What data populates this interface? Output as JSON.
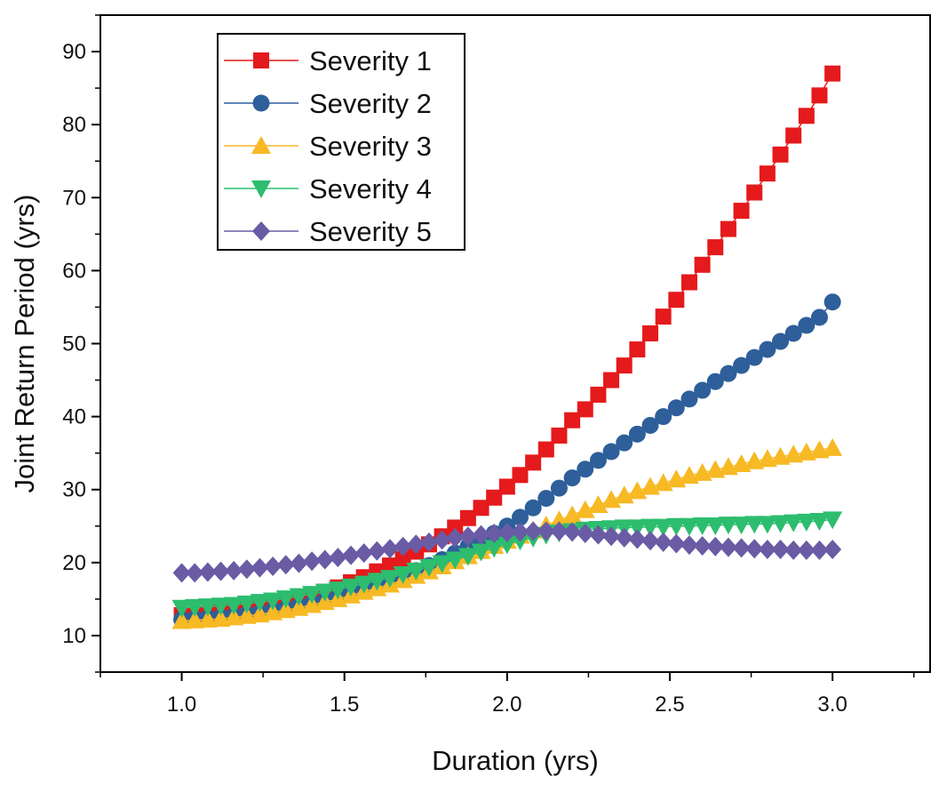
{
  "chart_data": {
    "type": "line",
    "title": "",
    "xlabel": "Duration (yrs)",
    "ylabel": "Joint Return Period (yrs)",
    "xlim": [
      0.75,
      3.3
    ],
    "ylim": [
      5,
      95
    ],
    "x_ticks": [
      "1.0",
      "1.5",
      "2.0",
      "2.5",
      "3.0"
    ],
    "y_ticks": [
      "10",
      "20",
      "30",
      "40",
      "50",
      "60",
      "70",
      "80",
      "90"
    ],
    "legend_position": "top-left",
    "x": [
      1.0,
      1.04,
      1.08,
      1.12,
      1.16,
      1.2,
      1.24,
      1.28,
      1.32,
      1.36,
      1.4,
      1.44,
      1.48,
      1.52,
      1.56,
      1.6,
      1.64,
      1.68,
      1.72,
      1.76,
      1.8,
      1.84,
      1.88,
      1.92,
      1.96,
      2.0,
      2.04,
      2.08,
      2.12,
      2.16,
      2.2,
      2.24,
      2.28,
      2.32,
      2.36,
      2.4,
      2.44,
      2.48,
      2.52,
      2.56,
      2.6,
      2.64,
      2.68,
      2.72,
      2.76,
      2.8,
      2.84,
      2.88,
      2.92,
      2.96,
      3.0
    ],
    "series": [
      {
        "name": "Severity 1",
        "color": "#e41a1c",
        "marker": "square",
        "values": [
          12.8,
          12.9,
          13.0,
          13.2,
          13.4,
          13.6,
          13.9,
          14.2,
          14.6,
          15.0,
          15.5,
          16.0,
          16.6,
          17.3,
          18.0,
          18.8,
          19.6,
          20.5,
          21.5,
          22.5,
          23.6,
          24.8,
          26.1,
          27.5,
          28.9,
          30.4,
          32.0,
          33.7,
          35.5,
          37.4,
          39.5,
          41.0,
          43.0,
          45.0,
          47.0,
          49.2,
          51.4,
          53.7,
          56.0,
          58.4,
          60.8,
          63.2,
          65.7,
          68.2,
          70.7,
          73.3,
          75.9,
          78.5,
          81.2,
          84.0,
          87.0
        ]
      },
      {
        "name": "Severity 2",
        "color": "#2e5f9a",
        "marker": "circle",
        "values": [
          12.2,
          12.3,
          12.4,
          12.5,
          12.7,
          12.9,
          13.1,
          13.4,
          13.7,
          14.0,
          14.4,
          14.8,
          15.3,
          15.8,
          16.3,
          16.9,
          17.5,
          18.2,
          18.9,
          19.6,
          20.4,
          21.3,
          22.2,
          23.1,
          24.0,
          25.0,
          26.2,
          27.5,
          28.8,
          30.2,
          31.6,
          32.8,
          34.0,
          35.2,
          36.4,
          37.6,
          38.8,
          40.0,
          41.2,
          42.4,
          43.6,
          44.8,
          45.9,
          47.0,
          48.1,
          49.2,
          50.3,
          51.4,
          52.5,
          53.6,
          55.7
        ]
      },
      {
        "name": "Severity 3",
        "color": "#f7b924",
        "marker": "triangle-up",
        "values": [
          12.0,
          12.1,
          12.2,
          12.3,
          12.5,
          12.7,
          12.9,
          13.2,
          13.5,
          13.8,
          14.2,
          14.6,
          15.0,
          15.5,
          16.0,
          16.5,
          17.0,
          17.6,
          18.2,
          18.8,
          19.5,
          20.2,
          20.9,
          21.6,
          22.3,
          23.0,
          23.7,
          24.4,
          25.1,
          25.8,
          26.5,
          27.2,
          27.9,
          28.6,
          29.2,
          29.8,
          30.4,
          30.9,
          31.4,
          31.9,
          32.3,
          32.7,
          33.1,
          33.5,
          33.9,
          34.2,
          34.5,
          34.8,
          35.1,
          35.4,
          35.7
        ]
      },
      {
        "name": "Severity 4",
        "color": "#2dbd6e",
        "marker": "triangle-down",
        "values": [
          13.8,
          13.9,
          14.0,
          14.1,
          14.2,
          14.4,
          14.6,
          14.8,
          15.1,
          15.4,
          15.7,
          16.0,
          16.3,
          16.7,
          17.1,
          17.5,
          17.9,
          18.4,
          18.9,
          19.4,
          19.9,
          20.4,
          20.9,
          21.5,
          22.0,
          22.5,
          23.0,
          23.4,
          23.8,
          24.1,
          24.3,
          24.5,
          24.6,
          24.7,
          24.8,
          24.8,
          24.9,
          24.9,
          25.0,
          25.0,
          25.1,
          25.1,
          25.2,
          25.2,
          25.3,
          25.3,
          25.4,
          25.5,
          25.6,
          25.7,
          25.9
        ]
      },
      {
        "name": "Severity 5",
        "color": "#6a5ba5",
        "marker": "diamond",
        "values": [
          18.6,
          18.6,
          18.7,
          18.8,
          18.9,
          19.1,
          19.3,
          19.5,
          19.7,
          19.9,
          20.2,
          20.4,
          20.7,
          21.0,
          21.3,
          21.6,
          21.9,
          22.2,
          22.5,
          22.8,
          23.1,
          23.4,
          23.6,
          23.8,
          24.0,
          24.1,
          24.2,
          24.3,
          24.3,
          24.3,
          24.2,
          24.0,
          23.8,
          23.6,
          23.4,
          23.2,
          23.0,
          22.8,
          22.6,
          22.4,
          22.3,
          22.2,
          22.1,
          22.0,
          21.9,
          21.8,
          21.8,
          21.7,
          21.7,
          21.7,
          21.8
        ]
      }
    ]
  }
}
